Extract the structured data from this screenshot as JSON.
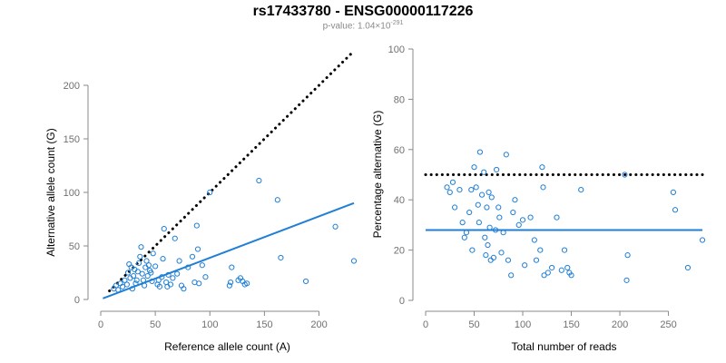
{
  "header": {
    "title": "rs17433780 - ENSG00000117226",
    "subtitle_prefix": "p-value: 1.04×10",
    "subtitle_exp": "-291"
  },
  "colors": {
    "points": "#1f7fd6",
    "fit": "#1f7fd6",
    "reference": "#000000",
    "axis": "#8a8a8a"
  },
  "chart_data": [
    {
      "type": "scatter",
      "xlabel": "Reference allele count (A)",
      "ylabel": "Alternative allele count (G)",
      "xlim": [
        0,
        232
      ],
      "ylim": [
        0,
        200
      ],
      "xticks": [
        0,
        50,
        100,
        150,
        200
      ],
      "yticks": [
        0,
        50,
        100,
        150,
        200
      ],
      "reference_line": {
        "style": "dotted",
        "slope": 1,
        "intercept": 0
      },
      "fit_line": {
        "style": "solid",
        "from": [
          2,
          1
        ],
        "to": [
          232,
          90
        ]
      },
      "points": [
        [
          12,
          10
        ],
        [
          14,
          13
        ],
        [
          16,
          9
        ],
        [
          18,
          15
        ],
        [
          20,
          12
        ],
        [
          22,
          18
        ],
        [
          24,
          14
        ],
        [
          25,
          25
        ],
        [
          26,
          33
        ],
        [
          27,
          20
        ],
        [
          28,
          30
        ],
        [
          29,
          10
        ],
        [
          30,
          22
        ],
        [
          31,
          28
        ],
        [
          32,
          15
        ],
        [
          33,
          18
        ],
        [
          34,
          26
        ],
        [
          35,
          34
        ],
        [
          36,
          40
        ],
        [
          37,
          49
        ],
        [
          38,
          24
        ],
        [
          39,
          18
        ],
        [
          40,
          13
        ],
        [
          41,
          30
        ],
        [
          42,
          36
        ],
        [
          43,
          22
        ],
        [
          44,
          32
        ],
        [
          45,
          27
        ],
        [
          46,
          25
        ],
        [
          47,
          17
        ],
        [
          48,
          43
        ],
        [
          50,
          31
        ],
        [
          52,
          14
        ],
        [
          53,
          18
        ],
        [
          54,
          12
        ],
        [
          56,
          21
        ],
        [
          57,
          38
        ],
        [
          58,
          66
        ],
        [
          60,
          16
        ],
        [
          61,
          12
        ],
        [
          62,
          23
        ],
        [
          64,
          14
        ],
        [
          66,
          20
        ],
        [
          68,
          57
        ],
        [
          70,
          24
        ],
        [
          72,
          36
        ],
        [
          74,
          13
        ],
        [
          76,
          10
        ],
        [
          80,
          30
        ],
        [
          84,
          40
        ],
        [
          86,
          16
        ],
        [
          88,
          69
        ],
        [
          89,
          47
        ],
        [
          90,
          15
        ],
        [
          93,
          32
        ],
        [
          96,
          21
        ],
        [
          100,
          100
        ],
        [
          118,
          13
        ],
        [
          119,
          16
        ],
        [
          120,
          30
        ],
        [
          126,
          18
        ],
        [
          128,
          20
        ],
        [
          130,
          17
        ],
        [
          132,
          14
        ],
        [
          134,
          15
        ],
        [
          145,
          111
        ],
        [
          162,
          93
        ],
        [
          165,
          39
        ],
        [
          188,
          17
        ],
        [
          215,
          68
        ],
        [
          232,
          36
        ]
      ]
    },
    {
      "type": "scatter",
      "xlabel": "Total number of reads",
      "ylabel": "Percentage alternative (G)",
      "xlim": [
        0,
        285
      ],
      "ylim": [
        0,
        100
      ],
      "xticks": [
        0,
        50,
        100,
        150,
        200,
        250
      ],
      "yticks": [
        0,
        20,
        40,
        60,
        80,
        100
      ],
      "reference_line": {
        "style": "dotted",
        "y": 50
      },
      "fit_line": {
        "style": "solid",
        "y": 28
      },
      "points": [
        [
          22,
          45
        ],
        [
          25,
          43
        ],
        [
          28,
          47
        ],
        [
          30,
          37
        ],
        [
          35,
          44
        ],
        [
          38,
          31
        ],
        [
          40,
          25
        ],
        [
          42,
          27
        ],
        [
          45,
          35
        ],
        [
          47,
          44
        ],
        [
          48,
          20
        ],
        [
          50,
          53
        ],
        [
          52,
          45
        ],
        [
          54,
          38
        ],
        [
          55,
          31
        ],
        [
          56,
          59
        ],
        [
          58,
          42
        ],
        [
          60,
          51
        ],
        [
          61,
          25
        ],
        [
          62,
          18
        ],
        [
          63,
          37
        ],
        [
          64,
          22
        ],
        [
          65,
          43
        ],
        [
          66,
          29
        ],
        [
          67,
          16
        ],
        [
          68,
          41
        ],
        [
          70,
          17
        ],
        [
          72,
          28
        ],
        [
          73,
          52
        ],
        [
          75,
          37
        ],
        [
          76,
          33
        ],
        [
          78,
          19
        ],
        [
          80,
          27
        ],
        [
          83,
          58
        ],
        [
          85,
          16
        ],
        [
          88,
          10
        ],
        [
          90,
          35
        ],
        [
          92,
          40
        ],
        [
          96,
          30
        ],
        [
          100,
          32
        ],
        [
          102,
          14
        ],
        [
          108,
          33
        ],
        [
          112,
          24
        ],
        [
          114,
          16
        ],
        [
          118,
          20
        ],
        [
          120,
          53
        ],
        [
          121,
          45
        ],
        [
          122,
          10
        ],
        [
          126,
          11
        ],
        [
          130,
          13
        ],
        [
          135,
          33
        ],
        [
          140,
          12
        ],
        [
          143,
          20
        ],
        [
          146,
          13
        ],
        [
          148,
          11
        ],
        [
          150,
          10
        ],
        [
          160,
          44
        ],
        [
          205,
          50
        ],
        [
          207,
          8
        ],
        [
          208,
          18
        ],
        [
          255,
          43
        ],
        [
          257,
          36
        ],
        [
          270,
          13
        ],
        [
          285,
          24
        ]
      ]
    }
  ]
}
